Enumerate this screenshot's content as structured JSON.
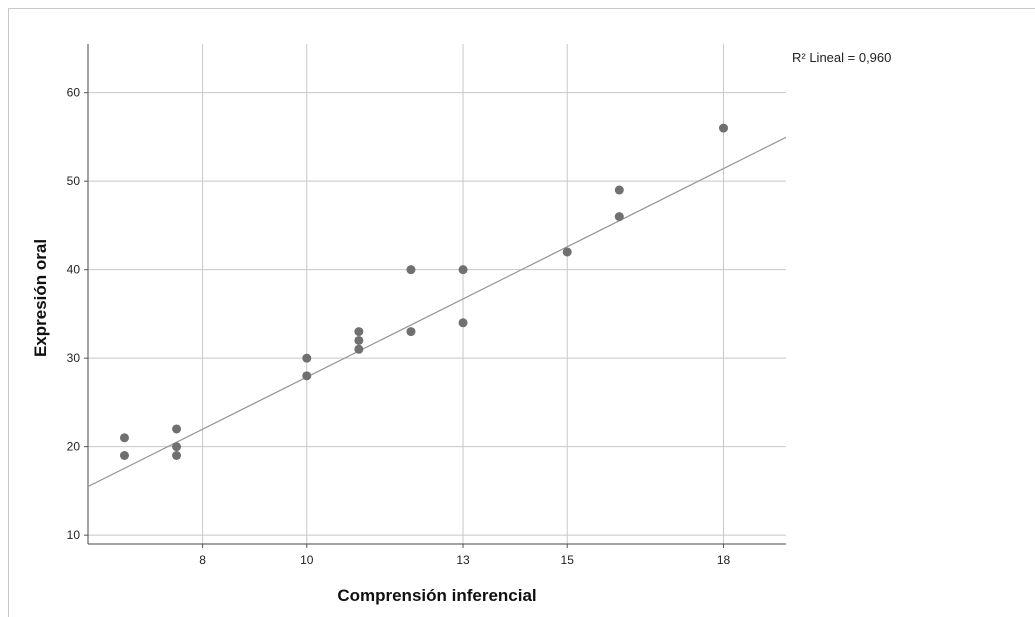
{
  "chart_data": {
    "type": "scatter",
    "title": "",
    "xlabel": "Comprensión inferencial",
    "ylabel": "Expresión oral",
    "x_ticks": [
      8,
      10,
      13,
      15,
      18
    ],
    "y_ticks": [
      10,
      20,
      30,
      40,
      50,
      60
    ],
    "x_tick_labels": [
      "8",
      "10",
      "13",
      "15",
      "18"
    ],
    "y_tick_labels": [
      "10",
      "20",
      "30",
      "40",
      "50",
      "60"
    ],
    "xlim": [
      5.8,
      19.2
    ],
    "ylim": [
      9.0,
      65.5
    ],
    "grid": true,
    "points": [
      {
        "x": 6.5,
        "y": 21
      },
      {
        "x": 6.5,
        "y": 19
      },
      {
        "x": 7.5,
        "y": 22
      },
      {
        "x": 7.5,
        "y": 20
      },
      {
        "x": 7.5,
        "y": 19
      },
      {
        "x": 10,
        "y": 30
      },
      {
        "x": 10,
        "y": 28
      },
      {
        "x": 11,
        "y": 33
      },
      {
        "x": 11,
        "y": 32
      },
      {
        "x": 11,
        "y": 31
      },
      {
        "x": 12,
        "y": 40
      },
      {
        "x": 12,
        "y": 33
      },
      {
        "x": 13,
        "y": 40
      },
      {
        "x": 13,
        "y": 34
      },
      {
        "x": 15,
        "y": 42
      },
      {
        "x": 16,
        "y": 49
      },
      {
        "x": 16,
        "y": 46
      },
      {
        "x": 18,
        "y": 56
      }
    ],
    "fit_line": {
      "type": "linear",
      "slope": 2.945,
      "intercept": -1.59
    },
    "annotation": "R² Lineal = 0,960",
    "marker_color": "#707070",
    "line_color": "#9a9a9a",
    "grid_color": "#c8c8c8"
  }
}
